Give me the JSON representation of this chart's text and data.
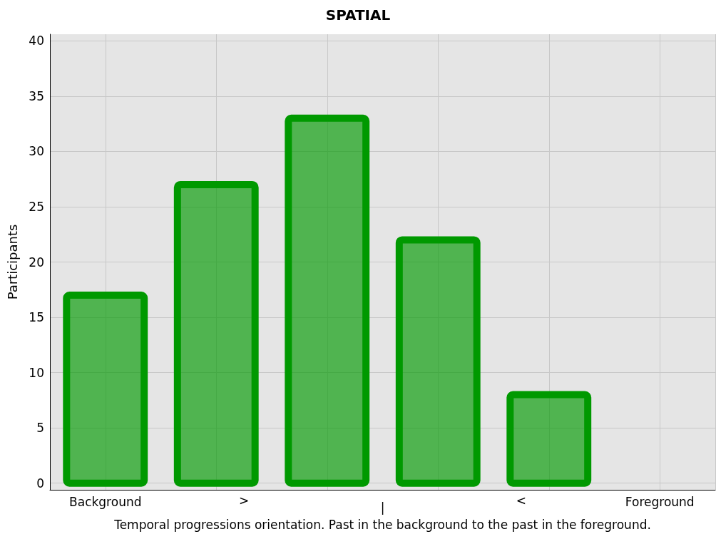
{
  "chart_data": {
    "type": "bar",
    "title": "SPATIAL",
    "xlabel": "Temporal progressions orientation. Past in the background to the past in the foreground.",
    "ylabel": "Participants",
    "categories": [
      "Background",
      null,
      null,
      null,
      null,
      "Foreground"
    ],
    "values": [
      17,
      27,
      33,
      22,
      8,
      null
    ],
    "color": "#009900",
    "annotations": [
      ">",
      "|",
      "<"
    ],
    "ylim": [
      -0.6,
      40.6
    ],
    "yticks": [
      0,
      5,
      10,
      15,
      20,
      25,
      30,
      35,
      40
    ],
    "grid": true
  }
}
